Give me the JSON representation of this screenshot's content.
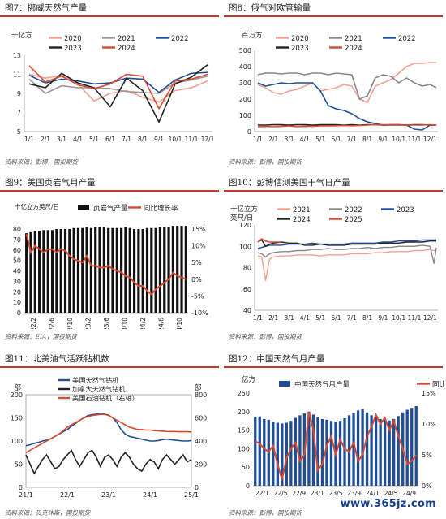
{
  "chart_data": [
    {
      "id": "c7",
      "type": "line",
      "panel_title": "图7：挪威天然气产量",
      "source": "资料来源：彭博，国投期货",
      "unit_label": "十亿方",
      "xticks": [
        "1/1",
        "2/1",
        "3/1",
        "4/1",
        "5/1",
        "6/1",
        "7/1",
        "8/1",
        "9/1",
        "10/1",
        "11/1",
        "12/1"
      ],
      "ylim": [
        5,
        13
      ],
      "yticks": [
        5,
        7,
        9,
        11,
        13
      ],
      "x": [
        1,
        2,
        3,
        4,
        5,
        6,
        7,
        8,
        9,
        10,
        11,
        12
      ],
      "legend_cols": 3,
      "series": [
        {
          "name": "2020",
          "color": "#f0a090",
          "width": 1.6,
          "values": [
            11.0,
            10.6,
            10.9,
            10.0,
            8.2,
            9.0,
            9.3,
            8.6,
            8.1,
            9.3,
            9.6,
            10.3
          ]
        },
        {
          "name": "2021",
          "color": "#999999",
          "width": 1.6,
          "values": [
            10.5,
            9.0,
            9.8,
            9.6,
            9.6,
            9.5,
            9.2,
            9.1,
            9.0,
            10.1,
            10.4,
            10.8
          ]
        },
        {
          "name": "2022",
          "color": "#1f4e96",
          "width": 1.6,
          "values": [
            10.9,
            10.1,
            10.5,
            10.3,
            10.0,
            10.1,
            10.6,
            10.5,
            9.1,
            10.4,
            11.1,
            11.2
          ]
        },
        {
          "name": "2023",
          "color": "#222222",
          "width": 1.6,
          "values": [
            10.0,
            9.6,
            11.1,
            10.1,
            9.6,
            7.6,
            10.6,
            9.3,
            6.0,
            10.0,
            10.7,
            12.0
          ]
        },
        {
          "name": "2024",
          "color": "#d94a30",
          "width": 1.6,
          "values": [
            11.9,
            10.2,
            10.8,
            9.9,
            9.5,
            10.0,
            11.0,
            10.8,
            7.4,
            10.3,
            10.5,
            11.0
          ]
        }
      ]
    },
    {
      "id": "c8",
      "type": "line",
      "panel_title": "图8：俄气对欧管输量",
      "source": "资料来源：彭博，国投期货",
      "unit_label": "百万方",
      "xticks": [
        "1/1",
        "2/1",
        "3/1",
        "4/1",
        "5/1",
        "6/1",
        "7/1",
        "8/1",
        "9/1",
        "10/1",
        "11/1",
        "12/1"
      ],
      "ylim": [
        0,
        500
      ],
      "yticks": [
        0,
        100,
        200,
        300,
        400,
        500
      ],
      "x": [
        1,
        1.5,
        2,
        2.5,
        3,
        3.5,
        4,
        4.5,
        5,
        5.5,
        6,
        6.5,
        7,
        7.5,
        8,
        8.5,
        9,
        9.5,
        10,
        10.5,
        11,
        11.5,
        12,
        12.4
      ],
      "legend_cols": 3,
      "series": [
        {
          "name": "2020",
          "color": "#f0a090",
          "width": 1.6,
          "values": [
            290,
            270,
            240,
            230,
            250,
            260,
            280,
            300,
            250,
            260,
            270,
            290,
            280,
            200,
            180,
            280,
            300,
            320,
            360,
            400,
            420,
            420,
            425,
            425
          ]
        },
        {
          "name": "2021",
          "color": "#888888",
          "width": 1.6,
          "values": [
            350,
            360,
            360,
            355,
            360,
            360,
            350,
            360,
            360,
            350,
            360,
            355,
            350,
            200,
            220,
            330,
            350,
            340,
            300,
            330,
            300,
            280,
            290,
            270
          ]
        },
        {
          "name": "2022",
          "color": "#1f4e96",
          "width": 1.6,
          "values": [
            300,
            280,
            290,
            300,
            295,
            300,
            300,
            300,
            250,
            160,
            140,
            130,
            110,
            80,
            60,
            50,
            40,
            40,
            40,
            40,
            15,
            10,
            40,
            40
          ]
        },
        {
          "name": "2023",
          "color": "#222222",
          "width": 1.6,
          "values": [
            40,
            40,
            42,
            42,
            40,
            42,
            42,
            40,
            42,
            42,
            42,
            40,
            42,
            40,
            42,
            42,
            40,
            42,
            42,
            40,
            42,
            42,
            40,
            40
          ]
        },
        {
          "name": "2024",
          "color": "#d94a30",
          "width": 1.6,
          "values": [
            30,
            32,
            30,
            32,
            35,
            30,
            32,
            33,
            35,
            35,
            36,
            38,
            36,
            38,
            40,
            42,
            42,
            42,
            42,
            40,
            40,
            40,
            42,
            40
          ]
        }
      ]
    },
    {
      "id": "c9",
      "type": "bar",
      "panel_title": "图9：美国页岩气月产量",
      "source": "资料来源：EIA，国投期货",
      "unit_label": "十亿立方英尺/日",
      "xticks": [
        "22/2",
        "22/6",
        "22/10",
        "23/2",
        "23/6",
        "23/10",
        "24/2",
        "24/6",
        "24/10"
      ],
      "ylim": [
        0,
        80
      ],
      "yticks": [
        0,
        10,
        20,
        30,
        40,
        50,
        60,
        70,
        80
      ],
      "y2lim": [
        -10,
        15
      ],
      "y2ticks": [
        "-10%",
        "-5%",
        "0%",
        "5%",
        "10%",
        "15%"
      ],
      "y2tick_values": [
        -10,
        -5,
        0,
        5,
        10,
        15
      ],
      "bar_name": "页岩气产量",
      "bar_color": "#111111",
      "bar_values": [
        76,
        77,
        78,
        78,
        79,
        79,
        79,
        80,
        80,
        80,
        80,
        81,
        81,
        81,
        82,
        81,
        82,
        82,
        82,
        81,
        81,
        81,
        81,
        82,
        81,
        80,
        80,
        80,
        81,
        81,
        81,
        82,
        82,
        82,
        83,
        83,
        83,
        83
      ],
      "line_name": "同比增长率",
      "line_color": "#d94a30",
      "line_values": [
        13.5,
        8,
        10,
        9,
        8,
        9,
        9,
        8,
        9,
        8.5,
        7,
        6,
        5.5,
        5,
        7,
        4,
        4,
        3.5,
        3.5,
        4,
        3,
        2.5,
        2,
        1,
        0.5,
        -1,
        -2,
        -2,
        -3.5,
        -4.5,
        -3,
        -2,
        -1,
        0,
        2,
        1,
        0.5,
        0
      ]
    },
    {
      "id": "c10",
      "type": "line",
      "panel_title": "图10：彭博估测美国干气日产量",
      "source": "资料来源：彭博，国投期货",
      "unit_label_top": "十亿立方",
      "unit_label": "英尺/日",
      "xticks": [
        "1/1",
        "2/1",
        "3/1",
        "4/1",
        "5/1",
        "6/1",
        "7/1",
        "8/1",
        "9/1",
        "10/1",
        "11/1",
        "12/1"
      ],
      "ylim": [
        40,
        120
      ],
      "yticks": [
        40,
        60,
        80,
        100,
        120
      ],
      "x": [
        1,
        1.25,
        1.5,
        1.75,
        2,
        2.5,
        3,
        3.5,
        4,
        4.5,
        5,
        5.5,
        6,
        6.5,
        7,
        7.5,
        8,
        8.5,
        9,
        9.5,
        10,
        10.5,
        11,
        11.5,
        12,
        12.25,
        12.4
      ],
      "legend_cols": 3,
      "series": [
        {
          "name": "2021",
          "color": "#f0a090",
          "width": 1.4,
          "values": [
            91,
            90,
            68,
            88,
            90,
            91,
            91,
            92,
            92,
            92,
            91,
            92,
            92,
            92,
            93,
            93,
            93,
            94,
            94,
            95,
            95,
            95,
            96,
            96,
            97,
            96,
            96
          ]
        },
        {
          "name": "2022",
          "color": "#888888",
          "width": 1.4,
          "values": [
            94,
            93,
            90,
            93,
            94,
            95,
            95,
            96,
            96,
            97,
            97,
            98,
            97,
            97,
            98,
            98,
            99,
            98,
            99,
            99,
            100,
            100,
            100,
            101,
            100,
            84,
            99
          ]
        },
        {
          "name": "2023",
          "color": "#1f4e96",
          "width": 1.4,
          "values": [
            98,
            99,
            100,
            101,
            101,
            101,
            102,
            102,
            102,
            103,
            102,
            102,
            102,
            102,
            103,
            103,
            103,
            103,
            104,
            104,
            105,
            105,
            105,
            106,
            106,
            106,
            106
          ]
        },
        {
          "name": "2024",
          "color": "#222222",
          "width": 1.4,
          "values": [
            104,
            106,
            100,
            102,
            103,
            104,
            103,
            103,
            101,
            101,
            102,
            101,
            101,
            101,
            102,
            102,
            102,
            102,
            103,
            103,
            103,
            104,
            104,
            104,
            105,
            105,
            105
          ]
        },
        {
          "name": "2025",
          "color": "#d94a30",
          "width": 1.6,
          "values": [
            104,
            107,
            105,
            104,
            104,
            104,
            null,
            null,
            null,
            null,
            null,
            null,
            null,
            null,
            null,
            null,
            null,
            null,
            null,
            null,
            null,
            null,
            null,
            null,
            null,
            null,
            null
          ]
        }
      ]
    },
    {
      "id": "c11",
      "type": "line",
      "panel_title": "图11：北美油气活跃钻机数",
      "source": "资料来源：贝克休斯，国投期货",
      "unit_left": "部",
      "unit_right": "部",
      "xticks": [
        "21/1",
        "22/1",
        "23/1",
        "24/1",
        "25/1"
      ],
      "x": [
        0,
        0.1,
        0.2,
        0.3,
        0.4,
        0.5,
        0.6,
        0.7,
        0.8,
        0.9,
        1.0,
        1.1,
        1.2,
        1.3,
        1.4,
        1.5,
        1.6,
        1.7,
        1.8,
        1.9,
        2.0,
        2.1,
        2.2,
        2.3,
        2.4,
        2.5,
        2.6,
        2.7,
        2.8,
        2.9,
        3.0,
        3.1,
        3.2,
        3.3,
        3.4,
        3.5,
        3.6,
        3.7,
        3.8,
        3.9,
        4.0
      ],
      "ylim": [
        0,
        200
      ],
      "yticks": [
        0,
        50,
        100,
        150,
        200
      ],
      "y2lim": [
        0,
        800
      ],
      "y2ticks": [
        0,
        200,
        400,
        600,
        800
      ],
      "series": [
        {
          "name": "美国天然气钻机",
          "color": "#1f4e96",
          "width": 1.6,
          "axis": "left",
          "values": [
            90,
            92,
            95,
            97,
            100,
            102,
            105,
            110,
            115,
            120,
            125,
            132,
            138,
            145,
            150,
            155,
            157,
            158,
            160,
            158,
            156,
            150,
            140,
            125,
            115,
            110,
            108,
            106,
            104,
            102,
            100,
            100,
            101,
            103,
            104,
            103,
            102,
            101,
            100,
            100,
            101
          ]
        },
        {
          "name": "加拿大天然气钻机",
          "color": "#222222",
          "width": 1.6,
          "axis": "left",
          "values": [
            70,
            50,
            30,
            45,
            60,
            70,
            55,
            40,
            45,
            60,
            70,
            80,
            60,
            45,
            60,
            75,
            80,
            65,
            45,
            65,
            70,
            60,
            45,
            65,
            75,
            65,
            50,
            40,
            35,
            50,
            60,
            55,
            40,
            60,
            70,
            60,
            50,
            60,
            70,
            55,
            60
          ]
        },
        {
          "name": "美国石油钻机（右轴）",
          "color": "#d94a30",
          "width": 1.6,
          "axis": "right",
          "values": [
            300,
            320,
            340,
            360,
            380,
            400,
            420,
            440,
            460,
            490,
            520,
            540,
            560,
            580,
            600,
            610,
            620,
            625,
            630,
            630,
            620,
            600,
            580,
            560,
            540,
            520,
            510,
            500,
            500,
            495,
            495,
            490,
            488,
            485,
            483,
            482,
            482,
            480,
            480,
            480,
            478
          ]
        }
      ]
    },
    {
      "id": "c12",
      "type": "bar",
      "panel_title": "图12：中国天然气月产量",
      "source": "资料来源：彭博，国投期货",
      "unit_label": "亿方",
      "xticks": [
        "22/1",
        "22/5",
        "22/9",
        "23/1",
        "23/5",
        "23/9",
        "24/1",
        "24/5",
        "24/9"
      ],
      "ylim": [
        0,
        250
      ],
      "yticks": [
        0,
        50,
        100,
        150,
        200,
        250
      ],
      "y2lim": [
        0,
        15
      ],
      "y2ticks": [
        "0%",
        "5%",
        "10%",
        "15%"
      ],
      "y2tick_values": [
        0,
        5,
        10,
        15
      ],
      "bar_name": "中国天然气月产量",
      "bar_color": "#1f4e96",
      "bar_values": [
        185,
        187,
        180,
        178,
        172,
        170,
        168,
        170,
        175,
        183,
        190,
        195,
        200,
        192,
        185,
        180,
        178,
        175,
        172,
        175,
        182,
        190,
        195,
        203,
        207,
        198,
        190,
        186,
        180,
        178,
        176,
        180,
        188,
        198,
        205,
        210,
        215
      ],
      "line_name": "同比增速",
      "line_color": "#d94a30",
      "line_values": [
        7.2,
        6.8,
        6.0,
        5.5,
        6.5,
        3.5,
        1.0,
        4.5,
        6.0,
        7.0,
        4.0,
        5.0,
        12.0,
        9.0,
        2.5,
        3.5,
        6.5,
        8.0,
        5.0,
        7.5,
        6.0,
        5.5,
        7.0,
        4.0,
        5.0,
        8.0,
        9.5,
        11.5,
        10.0,
        11.0,
        9.0,
        10.5,
        8.0,
        6.0,
        3.5,
        4.0,
        5.0
      ]
    }
  ],
  "watermark": "www.365jz.com"
}
